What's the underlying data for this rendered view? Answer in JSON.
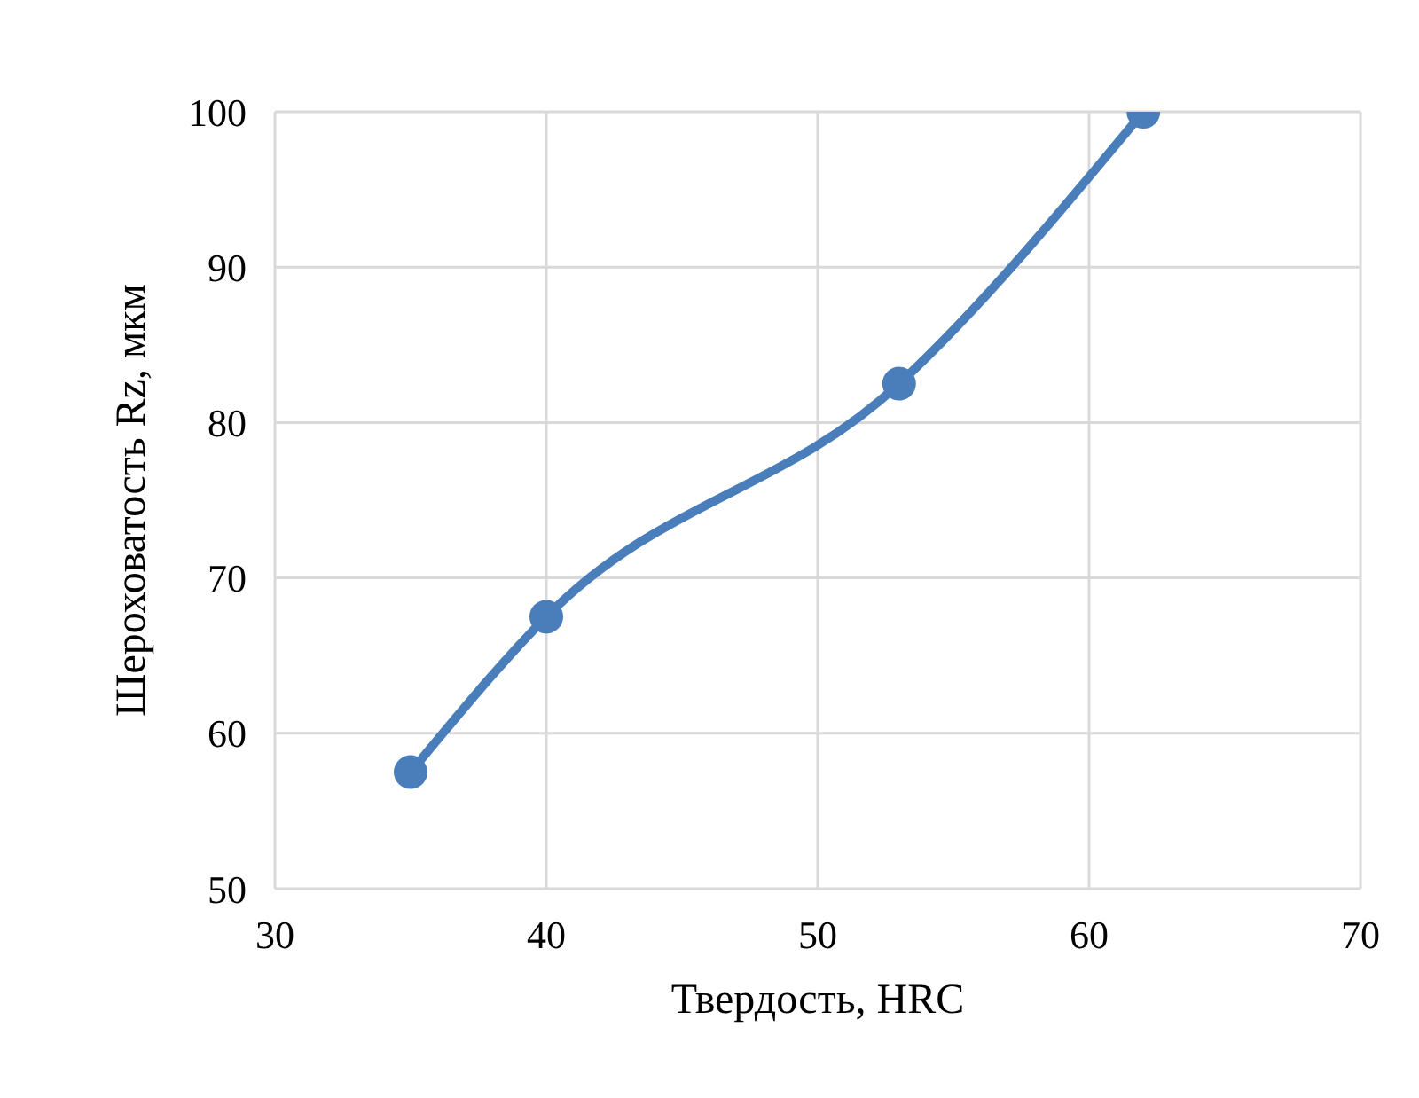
{
  "chart_data": {
    "type": "line",
    "xlabel": "Твердость, HRC",
    "ylabel": "Шероховатость Rz, мкм",
    "x": [
      35,
      40,
      53,
      62
    ],
    "series": [
      {
        "color": "#4a7ebb",
        "values": [
          57.5,
          67.5,
          82.5,
          100
        ]
      }
    ],
    "xlim": [
      30,
      70
    ],
    "xticks": [
      30,
      40,
      50,
      60,
      70
    ],
    "ylim": [
      50,
      100
    ],
    "yticks": [
      50,
      60,
      70,
      80,
      90,
      100
    ],
    "grid": true,
    "marker": "circle",
    "line_style": "solid",
    "legend": false
  }
}
